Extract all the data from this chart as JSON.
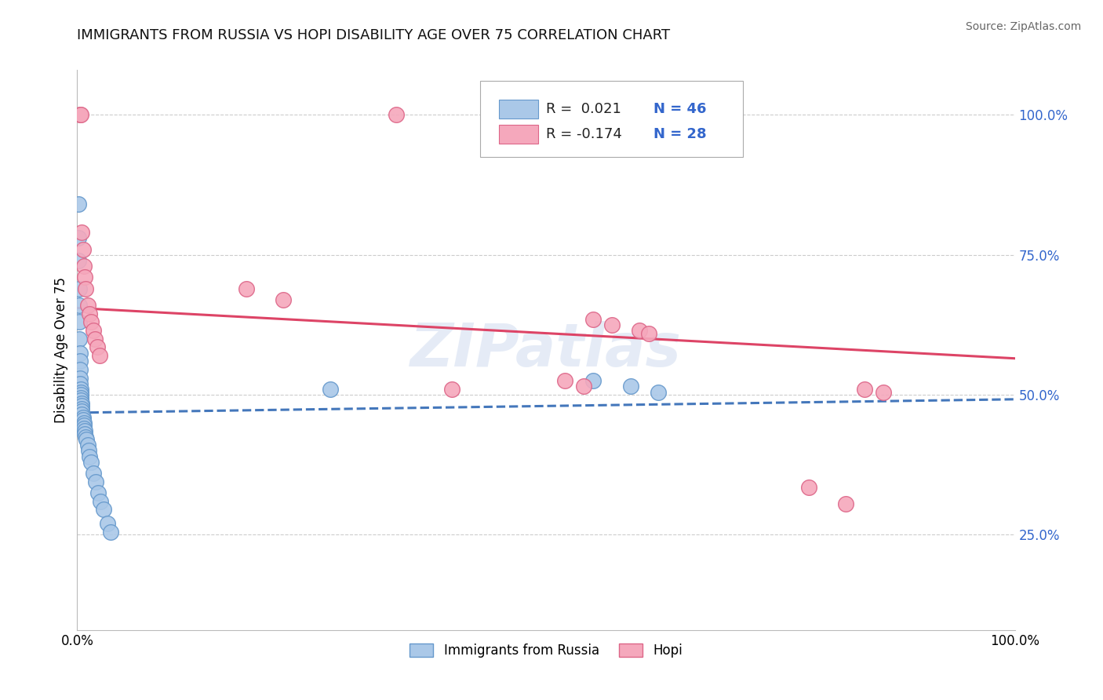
{
  "title": "IMMIGRANTS FROM RUSSIA VS HOPI DISABILITY AGE OVER 75 CORRELATION CHART",
  "source": "Source: ZipAtlas.com",
  "ylabel_left": "Disability Age Over 75",
  "xlim": [
    0,
    1.0
  ],
  "ylim": [
    0.08,
    1.08
  ],
  "xtick_labels": [
    "0.0%",
    "100.0%"
  ],
  "xtick_vals": [
    0.0,
    1.0
  ],
  "ytick_right_labels": [
    "25.0%",
    "50.0%",
    "75.0%",
    "100.0%"
  ],
  "ytick_right_vals": [
    0.25,
    0.5,
    0.75,
    1.0
  ],
  "grid_color": "#cccccc",
  "background_color": "#ffffff",
  "blue_color": "#aac8e8",
  "pink_color": "#f5a8bc",
  "blue_edge_color": "#6699cc",
  "pink_edge_color": "#dd6688",
  "trend_blue_color": "#4477bb",
  "trend_pink_color": "#dd4466",
  "legend_r_blue": "R =  0.021",
  "legend_n_blue": "N = 46",
  "legend_r_pink": "R = -0.174",
  "legend_n_pink": "N = 28",
  "legend_label_blue": "Immigrants from Russia",
  "legend_label_pink": "Hopi",
  "watermark": "ZIPatlas",
  "blue_scatter_x": [
    0.001,
    0.001,
    0.001,
    0.002,
    0.002,
    0.002,
    0.002,
    0.003,
    0.003,
    0.003,
    0.003,
    0.003,
    0.004,
    0.004,
    0.004,
    0.004,
    0.004,
    0.005,
    0.005,
    0.005,
    0.005,
    0.005,
    0.006,
    0.006,
    0.007,
    0.007,
    0.007,
    0.008,
    0.008,
    0.009,
    0.01,
    0.011,
    0.012,
    0.013,
    0.015,
    0.017,
    0.02,
    0.022,
    0.025,
    0.028,
    0.032,
    0.036,
    0.27,
    0.55,
    0.59,
    0.62
  ],
  "blue_scatter_y": [
    0.84,
    0.78,
    0.74,
    0.69,
    0.66,
    0.63,
    0.6,
    0.575,
    0.56,
    0.545,
    0.53,
    0.52,
    0.51,
    0.505,
    0.5,
    0.495,
    0.49,
    0.485,
    0.48,
    0.475,
    0.47,
    0.465,
    0.46,
    0.455,
    0.45,
    0.445,
    0.44,
    0.435,
    0.43,
    0.425,
    0.42,
    0.41,
    0.4,
    0.39,
    0.38,
    0.36,
    0.345,
    0.325,
    0.31,
    0.295,
    0.27,
    0.255,
    0.51,
    0.525,
    0.515,
    0.505
  ],
  "pink_scatter_x": [
    0.003,
    0.004,
    0.34,
    0.005,
    0.006,
    0.007,
    0.008,
    0.009,
    0.011,
    0.013,
    0.015,
    0.017,
    0.019,
    0.021,
    0.024,
    0.4,
    0.52,
    0.54,
    0.55,
    0.57,
    0.6,
    0.61,
    0.78,
    0.82,
    0.84,
    0.86,
    0.18,
    0.22
  ],
  "pink_scatter_y": [
    1.0,
    1.0,
    1.0,
    0.79,
    0.76,
    0.73,
    0.71,
    0.69,
    0.66,
    0.645,
    0.63,
    0.615,
    0.6,
    0.585,
    0.57,
    0.51,
    0.525,
    0.515,
    0.635,
    0.625,
    0.615,
    0.61,
    0.335,
    0.305,
    0.51,
    0.505,
    0.69,
    0.67
  ],
  "blue_trend_x": [
    0.0,
    1.0
  ],
  "blue_trend_y": [
    0.468,
    0.492
  ],
  "pink_trend_x": [
    0.0,
    1.0
  ],
  "pink_trend_y": [
    0.655,
    0.565
  ]
}
